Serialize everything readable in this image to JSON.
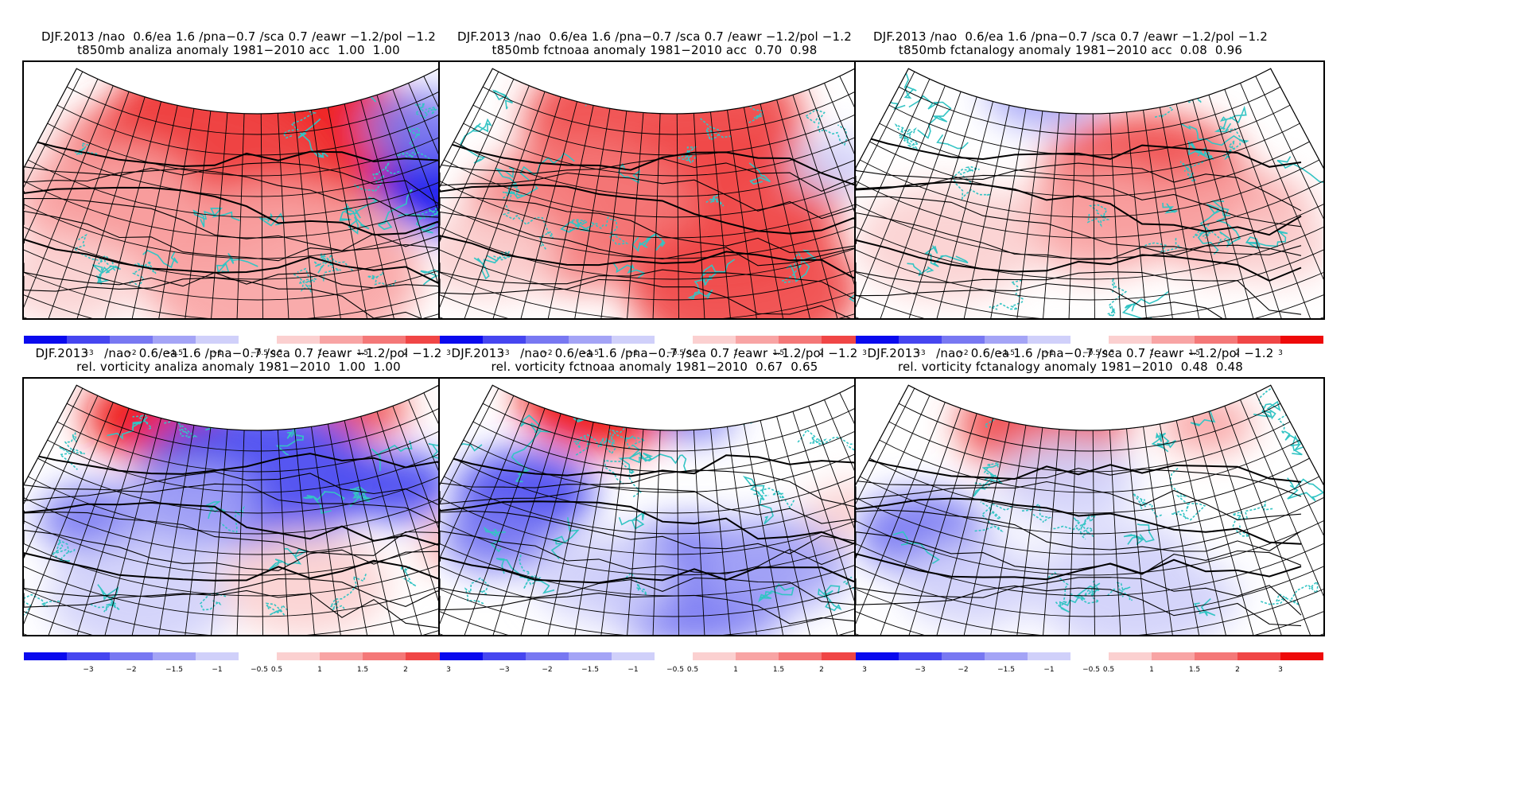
{
  "panels": [
    {
      "title1": "DJF.2013 /nao  0.6/ea 1.6 /pna−0.7 /sca 0.7 /eawr −1.2/pol −1.2",
      "title2": "t850mb analiza anomaly 1981−2010 acc  1.00  1.00",
      "pattern": "t-obs"
    },
    {
      "title1": "DJF.2013 /nao  0.6/ea 1.6 /pna−0.7 /sca 0.7 /eawr −1.2/pol −1.2",
      "title2": "t850mb fctnoaa anomaly 1981−2010 acc  0.70  0.98",
      "pattern": "t-noaa"
    },
    {
      "title1": "DJF.2013 /nao  0.6/ea 1.6 /pna−0.7 /sca 0.7 /eawr −1.2/pol −1.2",
      "title2": "t850mb fctanalogy anomaly 1981−2010 acc  0.08  0.96",
      "pattern": "t-analog"
    },
    {
      "title1": "DJF.2013    /nao  0.6/ea 1.6 /pna−0.7 /sca 0.7 /eawr −1.2/pol −1.2",
      "title2": "rel. vorticity analiza anomaly 1981−2010  1.00  1.00",
      "pattern": "v-obs"
    },
    {
      "title1": "DJF.2013    /nao  0.6/ea 1.6 /pna−0.7 /sca 0.7 /eawr −1.2/pol −1.2",
      "title2": "rel. vorticity fctnoaa anomaly 1981−2010  0.67  0.65",
      "pattern": "v-noaa"
    },
    {
      "title1": "DJF.2013    /nao  0.6/ea 1.6 /pna−0.7 /sca 0.7 /eawr −1.2/pol −1.2",
      "title2": "rel. vorticity fctanalogy anomaly 1981−2010  0.48  0.48",
      "pattern": "v-analog"
    }
  ],
  "colorbar": {
    "labels": [
      "−3",
      "−2",
      "−1.5",
      "−1",
      "−0.5",
      "0.5",
      "1",
      "1.5",
      "2",
      "3"
    ],
    "colors": [
      "#0a0aee",
      "#4646f0",
      "#7878f2",
      "#a4a4f6",
      "#d0d0fa",
      "#ffffff",
      "#fbd0d0",
      "#f8a4a4",
      "#f47878",
      "#f04646",
      "#ee0a0a"
    ]
  },
  "colors": {
    "coast": "#33c4c4",
    "grid": "#000000",
    "warm": "#ee0a0a",
    "cold": "#0a0aee"
  }
}
